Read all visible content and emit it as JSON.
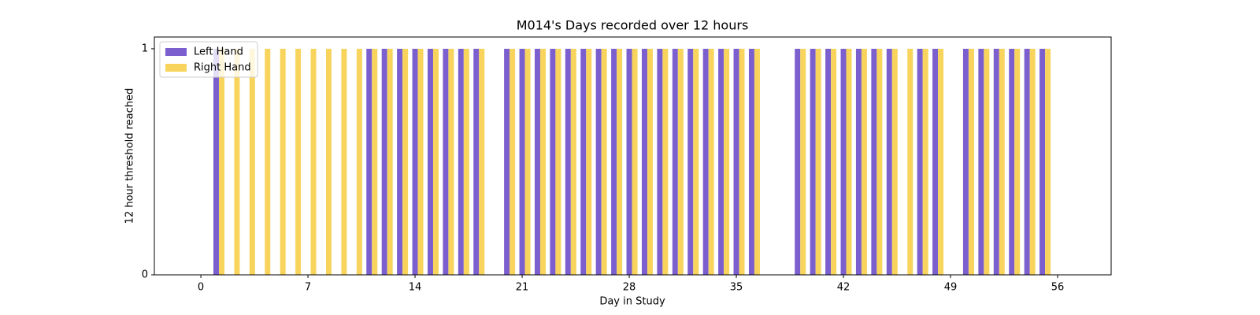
{
  "chart_data": {
    "type": "bar",
    "title": "M014's Days recorded over 12 hours",
    "x_label": "Day in Study",
    "y_label": "12 hour threshold reached",
    "x": [
      0,
      1,
      2,
      3,
      4,
      5,
      6,
      7,
      8,
      9,
      10,
      11,
      12,
      13,
      14,
      15,
      16,
      17,
      18,
      19,
      20,
      21,
      22,
      23,
      24,
      25,
      26,
      27,
      28,
      29,
      30,
      31,
      32,
      33,
      34,
      35,
      36,
      37,
      38,
      39,
      40,
      41,
      42,
      43,
      44,
      45,
      46,
      47,
      48,
      49,
      50,
      51,
      52,
      53,
      54,
      55,
      56
    ],
    "series": [
      {
        "name": "Left Hand",
        "color": "#7b5fcf",
        "values": [
          0,
          1,
          0,
          0,
          0,
          0,
          0,
          0,
          0,
          0,
          0,
          1,
          1,
          1,
          1,
          1,
          1,
          1,
          1,
          0,
          1,
          1,
          1,
          1,
          1,
          1,
          1,
          1,
          1,
          1,
          1,
          1,
          1,
          1,
          1,
          1,
          1,
          0,
          0,
          1,
          1,
          1,
          1,
          1,
          1,
          1,
          0,
          1,
          1,
          0,
          1,
          1,
          1,
          1,
          1,
          1,
          0
        ]
      },
      {
        "name": "Right Hand",
        "color": "#f8d45c",
        "values": [
          0,
          1,
          1,
          1,
          1,
          1,
          1,
          1,
          1,
          1,
          1,
          1,
          1,
          1,
          1,
          1,
          1,
          1,
          1,
          0,
          1,
          1,
          1,
          1,
          1,
          1,
          1,
          1,
          1,
          1,
          1,
          1,
          1,
          1,
          1,
          1,
          1,
          0,
          0,
          1,
          1,
          1,
          1,
          1,
          1,
          1,
          1,
          1,
          1,
          0,
          1,
          1,
          1,
          1,
          1,
          1,
          0
        ]
      }
    ],
    "xlim": [
      -3.04,
      59.5
    ],
    "xticks": [
      0,
      7,
      14,
      21,
      28,
      35,
      42,
      49,
      56
    ],
    "ylim": [
      0,
      1.052
    ],
    "yticks": [
      0,
      1
    ],
    "legend": "upper left"
  }
}
